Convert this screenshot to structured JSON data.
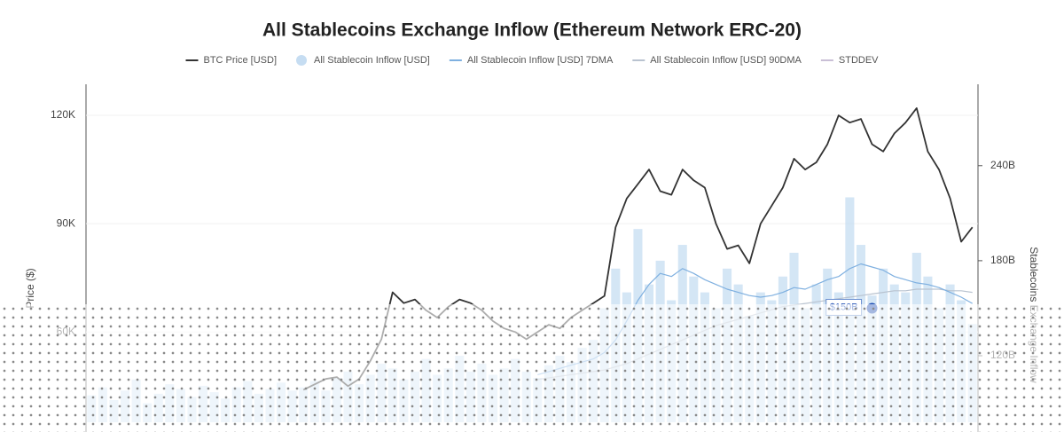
{
  "chart_data": {
    "type": "combo",
    "title": "All Stablecoins Exchange Inflow (Ethereum Network ERC-20)",
    "y_label": "Price ($)",
    "y2_label": "Stablecoins Exchange Inflow",
    "categories": [
      null,
      null,
      null,
      null,
      null,
      null,
      null,
      null,
      null,
      null,
      null,
      null,
      null,
      null,
      null,
      null,
      null,
      null,
      null,
      null,
      null,
      null,
      null,
      null,
      null,
      null,
      null,
      null,
      null,
      null,
      null,
      null,
      null,
      null,
      null,
      null,
      null,
      null,
      null,
      null,
      null,
      null,
      null,
      null,
      null,
      null,
      null,
      null,
      null,
      null,
      null,
      null,
      null,
      null,
      null,
      null,
      null,
      null,
      null,
      null,
      null,
      null,
      null,
      null,
      null,
      null,
      null,
      null,
      null,
      null,
      null,
      null,
      null,
      null,
      null,
      null,
      null,
      null,
      null,
      null
    ],
    "ylim": [
      35000,
      128000
    ],
    "yticks": [
      {
        "value": 60000,
        "label": "60K"
      },
      {
        "value": 90000,
        "label": "90K"
      },
      {
        "value": 120000,
        "label": "120K"
      }
    ],
    "y2lim": [
      78,
      290
    ],
    "y2ticks": [
      {
        "value": 120,
        "label": "120B"
      },
      {
        "value": 180,
        "label": "180B"
      },
      {
        "value": 240,
        "label": "240B"
      }
    ],
    "grid": true,
    "legend": "top",
    "series": [
      {
        "name": "BTC Price [USD]",
        "type": "line",
        "color": "#333333",
        "values": [
          null,
          null,
          null,
          null,
          null,
          null,
          null,
          null,
          null,
          null,
          null,
          null,
          null,
          null,
          null,
          null,
          null,
          null,
          null,
          44000,
          45500,
          47000,
          47500,
          45000,
          47000,
          52000,
          58000,
          71000,
          68000,
          69000,
          66000,
          64000,
          67000,
          69000,
          68000,
          66000,
          63000,
          61000,
          60000,
          58000,
          60000,
          62000,
          61000,
          64000,
          66000,
          68000,
          70000,
          89000,
          97000,
          101000,
          105000,
          99000,
          98000,
          105000,
          102000,
          100000,
          90000,
          83000,
          84000,
          79000,
          90000,
          95000,
          100000,
          108000,
          105000,
          107000,
          112000,
          120000,
          118000,
          119000,
          112000,
          110000,
          115000,
          118000,
          122000,
          110000,
          105000,
          97000,
          85000,
          89000
        ]
      },
      {
        "name": "All Stablecoin Inflow [USD]",
        "type": "bar",
        "axis": "y2",
        "color": "#c6ddf2",
        "values": [
          95,
          100,
          92,
          98,
          105,
          90,
          96,
          102,
          99,
          94,
          101,
          97,
          93,
          100,
          104,
          96,
          99,
          103,
          98,
          100,
          104,
          98,
          106,
          110,
          102,
          108,
          115,
          112,
          105,
          110,
          118,
          108,
          112,
          120,
          110,
          115,
          108,
          112,
          118,
          110,
          106,
          114,
          120,
          116,
          125,
          130,
          150,
          175,
          160,
          200,
          165,
          180,
          155,
          190,
          170,
          160,
          150,
          175,
          165,
          145,
          160,
          155,
          170,
          185,
          150,
          165,
          175,
          160,
          220,
          190,
          158,
          175,
          165,
          160,
          185,
          170,
          150,
          165,
          155,
          140
        ]
      },
      {
        "name": "All Stablecoin Inflow [USD] 7DMA",
        "type": "line",
        "axis": "y2",
        "color": "#7fb0e0",
        "values": [
          null,
          null,
          null,
          null,
          null,
          null,
          null,
          null,
          null,
          null,
          null,
          null,
          null,
          null,
          null,
          null,
          null,
          null,
          null,
          null,
          null,
          null,
          null,
          null,
          null,
          null,
          null,
          null,
          null,
          null,
          null,
          null,
          null,
          null,
          null,
          null,
          null,
          null,
          null,
          null,
          108,
          110,
          112,
          114,
          116,
          118,
          122,
          130,
          142,
          155,
          165,
          172,
          170,
          175,
          172,
          168,
          165,
          162,
          160,
          158,
          157,
          158,
          160,
          163,
          162,
          165,
          168,
          170,
          175,
          178,
          176,
          174,
          170,
          168,
          166,
          165,
          163,
          160,
          157,
          153
        ]
      },
      {
        "name": "All Stablecoin Inflow [USD] 90DMA",
        "type": "line",
        "axis": "y2",
        "color": "#b9c3d0",
        "values": [
          null,
          null,
          null,
          null,
          null,
          null,
          null,
          null,
          null,
          null,
          null,
          null,
          null,
          null,
          null,
          null,
          null,
          null,
          null,
          null,
          null,
          null,
          null,
          null,
          null,
          null,
          null,
          null,
          null,
          null,
          null,
          null,
          null,
          null,
          null,
          null,
          null,
          null,
          null,
          null,
          105,
          106,
          107,
          108,
          109,
          110,
          111,
          113,
          115,
          118,
          121,
          124,
          127,
          130,
          133,
          136,
          139,
          141,
          143,
          145,
          147,
          149,
          151,
          152,
          153,
          154,
          155,
          156,
          157,
          158,
          159,
          160,
          161,
          161,
          162,
          162,
          162,
          161,
          161,
          160
        ]
      },
      {
        "name": "STDDEV",
        "type": "line",
        "axis": "y2",
        "color": "#c9bfd6",
        "values": [
          null,
          null,
          null,
          null,
          null,
          null,
          null,
          null,
          null,
          null,
          null,
          null,
          null,
          null,
          null,
          null,
          null,
          null,
          null,
          null,
          null,
          null,
          null,
          null,
          null,
          null,
          null,
          null,
          null,
          null,
          null,
          null,
          null,
          null,
          null,
          null,
          null,
          null,
          null,
          null,
          null,
          null,
          null,
          null,
          null,
          null,
          null,
          null,
          null,
          null,
          null,
          null,
          null,
          null,
          null,
          null,
          null,
          null,
          null,
          null,
          null,
          null,
          null,
          null,
          null,
          null,
          null,
          null,
          null,
          null,
          null,
          null,
          null,
          null,
          null,
          null,
          null,
          null,
          null,
          null
        ]
      }
    ],
    "annotations": [
      {
        "text": "$150B",
        "index": 70,
        "value": 150,
        "axis": "y2"
      }
    ]
  }
}
